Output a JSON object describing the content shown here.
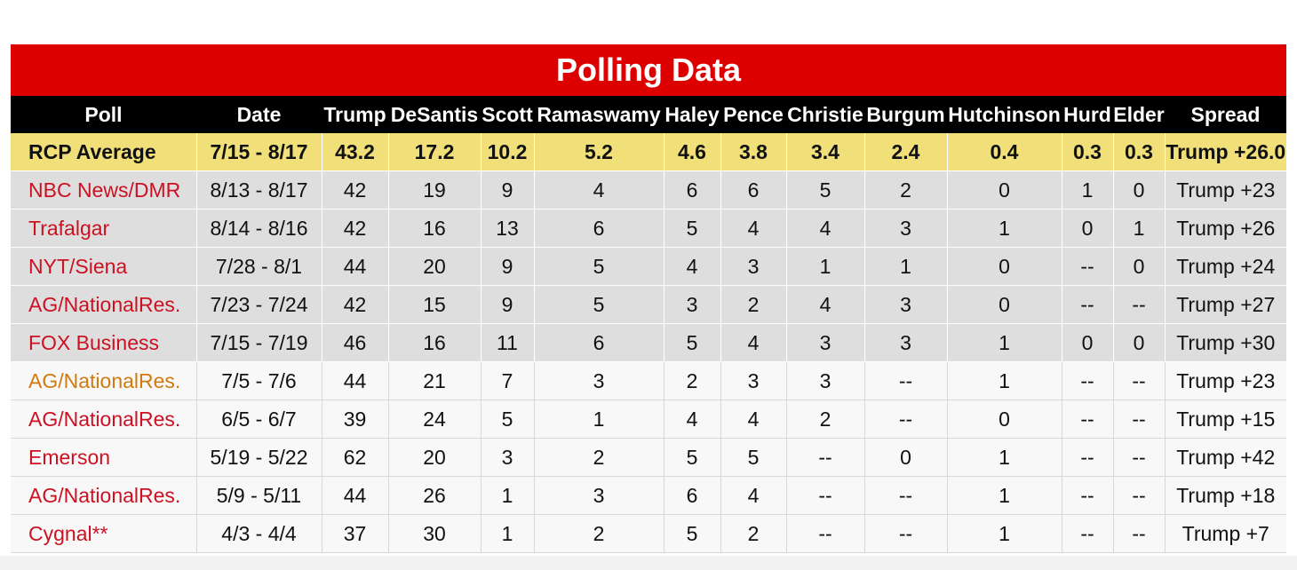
{
  "title": "Polling Data",
  "columns": [
    "Poll",
    "Date",
    "Trump",
    "DeSantis",
    "Scott",
    "Ramaswamy",
    "Haley",
    "Pence",
    "Christie",
    "Burgum",
    "Hutchinson",
    "Hurd",
    "Elder",
    "Spread"
  ],
  "average": [
    "RCP Average",
    "7/15 - 8/17",
    "43.2",
    "17.2",
    "10.2",
    "5.2",
    "4.6",
    "3.8",
    "3.4",
    "2.4",
    "0.4",
    "0.3",
    "0.3",
    "Trump +26.0"
  ],
  "rows": [
    [
      "NBC News/DMR",
      "8/13 - 8/17",
      "42",
      "19",
      "9",
      "4",
      "6",
      "6",
      "5",
      "2",
      "0",
      "1",
      "0",
      "Trump +23"
    ],
    [
      "Trafalgar",
      "8/14 - 8/16",
      "42",
      "16",
      "13",
      "6",
      "5",
      "4",
      "4",
      "3",
      "1",
      "0",
      "1",
      "Trump +26"
    ],
    [
      "NYT/Siena",
      "7/28 - 8/1",
      "44",
      "20",
      "9",
      "5",
      "4",
      "3",
      "1",
      "1",
      "0",
      "--",
      "0",
      "Trump +24"
    ],
    [
      "AG/NationalRes.",
      "7/23 - 7/24",
      "42",
      "15",
      "9",
      "5",
      "3",
      "2",
      "4",
      "3",
      "0",
      "--",
      "--",
      "Trump +27"
    ],
    [
      "FOX Business",
      "7/15 - 7/19",
      "46",
      "16",
      "11",
      "6",
      "5",
      "4",
      "3",
      "3",
      "1",
      "0",
      "0",
      "Trump +30"
    ],
    [
      "AG/NationalRes.",
      "7/5 - 7/6",
      "44",
      "21",
      "7",
      "3",
      "2",
      "3",
      "3",
      "--",
      "1",
      "--",
      "--",
      "Trump +23"
    ],
    [
      "AG/NationalRes.",
      "6/5 - 6/7",
      "39",
      "24",
      "5",
      "1",
      "4",
      "4",
      "2",
      "--",
      "0",
      "--",
      "--",
      "Trump +15"
    ],
    [
      "Emerson",
      "5/19 - 5/22",
      "62",
      "20",
      "3",
      "2",
      "5",
      "5",
      "--",
      "0",
      "1",
      "--",
      "--",
      "Trump +42"
    ],
    [
      "AG/NationalRes.",
      "5/9 - 5/11",
      "44",
      "26",
      "1",
      "3",
      "6",
      "4",
      "--",
      "--",
      "1",
      "--",
      "--",
      "Trump +18"
    ],
    [
      "Cygnal**",
      "4/3 - 4/4",
      "37",
      "30",
      "1",
      "2",
      "5",
      "2",
      "--",
      "--",
      "1",
      "--",
      "--",
      "Trump +7"
    ]
  ],
  "colors": {
    "title_bg": "#dd0000",
    "header_bg": "#000000",
    "average_bg": "#f1e07a",
    "in_average_row_bg": "#dedede",
    "poll_link_red": "#cc1122",
    "poll_link_orange": "#d07a10"
  }
}
